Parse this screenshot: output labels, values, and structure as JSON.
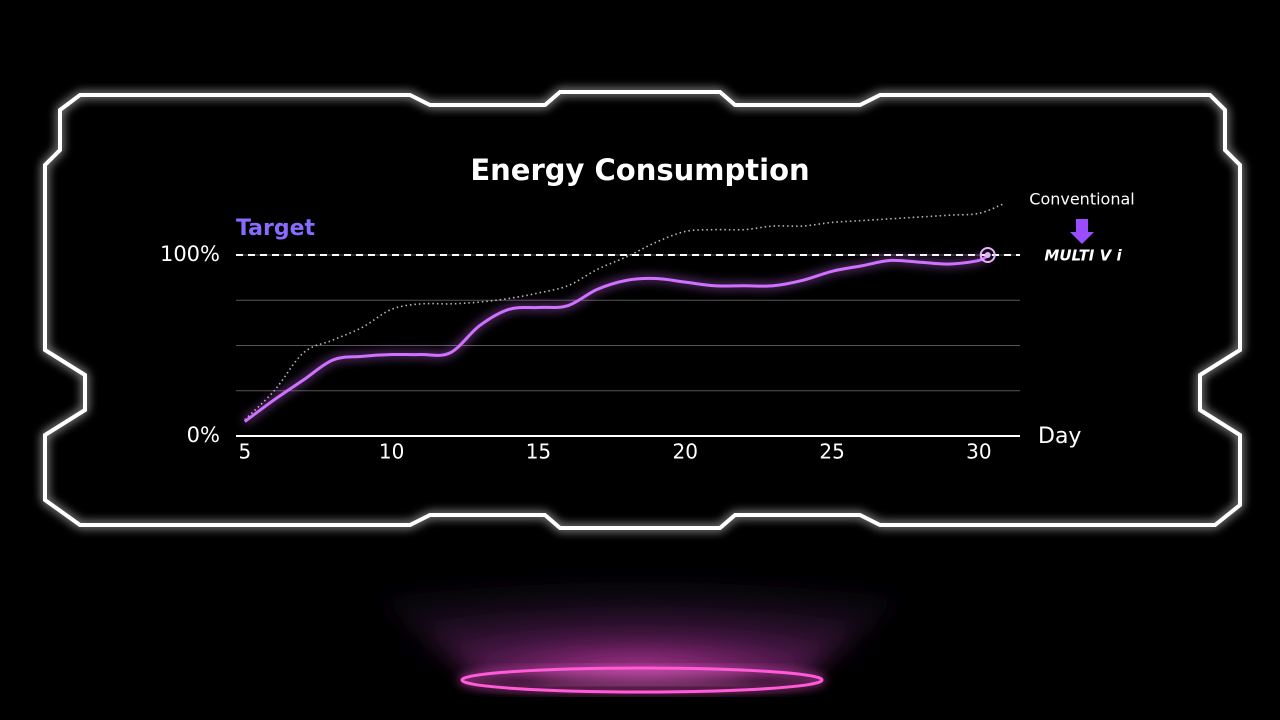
{
  "chart_data": {
    "type": "line",
    "title": "Energy Consumption",
    "xlabel": "Day",
    "annotation": "Target",
    "target": 100,
    "xlim": [
      4.7,
      31.4
    ],
    "xticks": [
      5,
      10,
      15,
      20,
      25,
      30
    ],
    "ylim": [
      0,
      130
    ],
    "yticks": [
      {
        "value": 0,
        "label": "0%"
      },
      {
        "value": 25,
        "label": null
      },
      {
        "value": 50,
        "label": null
      },
      {
        "value": 75,
        "label": null
      },
      {
        "value": 100,
        "label": "100%"
      }
    ],
    "grid": true,
    "series": [
      {
        "name": "Conventional",
        "color": "#b8b8b8",
        "style": "dotted",
        "x": [
          5,
          6,
          7,
          8,
          9,
          10,
          11,
          12,
          13,
          14,
          15,
          16,
          17,
          18,
          19,
          20,
          21,
          22,
          23,
          24,
          25,
          26,
          27,
          28,
          29,
          30,
          30.8
        ],
        "values": [
          9,
          25,
          46,
          53,
          60,
          70,
          73,
          73,
          74,
          76,
          79,
          83,
          92,
          99,
          107,
          113,
          114,
          114,
          116,
          116,
          118,
          119,
          120,
          121,
          122,
          123,
          128
        ]
      },
      {
        "name": "MULTI V i",
        "color": "#d070ff",
        "style": "solid",
        "x": [
          5,
          6,
          7,
          8,
          9,
          10,
          11,
          12,
          13,
          14,
          15,
          16,
          17,
          18,
          19,
          20,
          21,
          22,
          23,
          24,
          25,
          26,
          27,
          28,
          29,
          30,
          30.3
        ],
        "values": [
          8,
          20,
          31,
          42,
          44,
          45,
          45,
          46,
          61,
          70,
          71,
          72,
          81,
          86,
          87,
          85,
          83,
          83,
          83,
          86,
          91,
          94,
          97,
          96,
          95,
          97,
          100
        ]
      }
    ]
  }
}
